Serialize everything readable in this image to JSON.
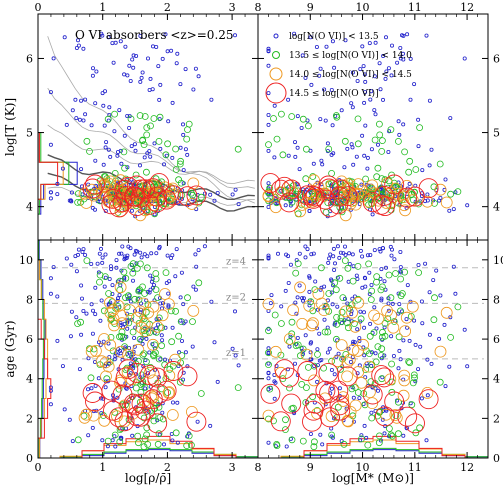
{
  "chart_data": {
    "type": "scatter",
    "title": "O VI absorbers <z>=0.25",
    "legend": {
      "placement": "top-right",
      "entries": [
        {
          "label": "log[N(O VI)] < 13.5",
          "color": "#2222cc",
          "size": 2
        },
        {
          "label": "13.5 ≤ log[N(O VI)] < 14.0",
          "color": "#22bb22",
          "size": 3.5
        },
        {
          "label": "14.0 ≤ log[N(O VI)] < 14.5",
          "color": "#ee9922",
          "size": 6
        },
        {
          "label": "14.5 ≤ log[N(O VI)]",
          "color": "#ee2222",
          "size": 10
        }
      ]
    },
    "axes": {
      "rho": {
        "label": "log[ρ/ρ̄]",
        "range": [
          0,
          3.4
        ],
        "ticks": [
          "0",
          "1",
          "2",
          "3"
        ]
      },
      "mstar": {
        "label": "log[M* (M⊙)]",
        "range": [
          8,
          12.4
        ],
        "ticks": [
          "8",
          "9",
          "10",
          "11",
          "12"
        ]
      },
      "temp": {
        "label": "log[T (K)]",
        "range": [
          3.55,
          6.6
        ],
        "ticks": [
          "4",
          "5",
          "6"
        ]
      },
      "age": {
        "label": "age (Gyr)",
        "range": [
          0,
          11
        ],
        "ticks": [
          "0",
          "2",
          "4",
          "6",
          "8",
          "10"
        ]
      }
    },
    "redshift_lines": [
      {
        "label": "z=4",
        "age": 9.6
      },
      {
        "label": "z=2",
        "age": 7.8
      },
      {
        "label": "z=1",
        "age": 5.0
      }
    ],
    "grid": false,
    "panels": [
      {
        "name": "temperature-vs-overdensity",
        "x": "rho",
        "y": "temp"
      },
      {
        "name": "temperature-vs-stellar-mass",
        "x": "mstar",
        "y": "temp"
      },
      {
        "name": "age-vs-overdensity",
        "x": "rho",
        "y": "age"
      },
      {
        "name": "age-vs-stellar-mass",
        "x": "mstar",
        "y": "age"
      }
    ],
    "series_counts": {
      "blue": 300,
      "green": 150,
      "orange": 60,
      "red": 25
    }
  },
  "colors": {
    "blue": "#2222cc",
    "green": "#22bb22",
    "orange": "#ee9922",
    "red": "#ee2222",
    "contour": "#aaaaaa",
    "contour_dark": "#555555",
    "zline": "#bbbbbb"
  }
}
